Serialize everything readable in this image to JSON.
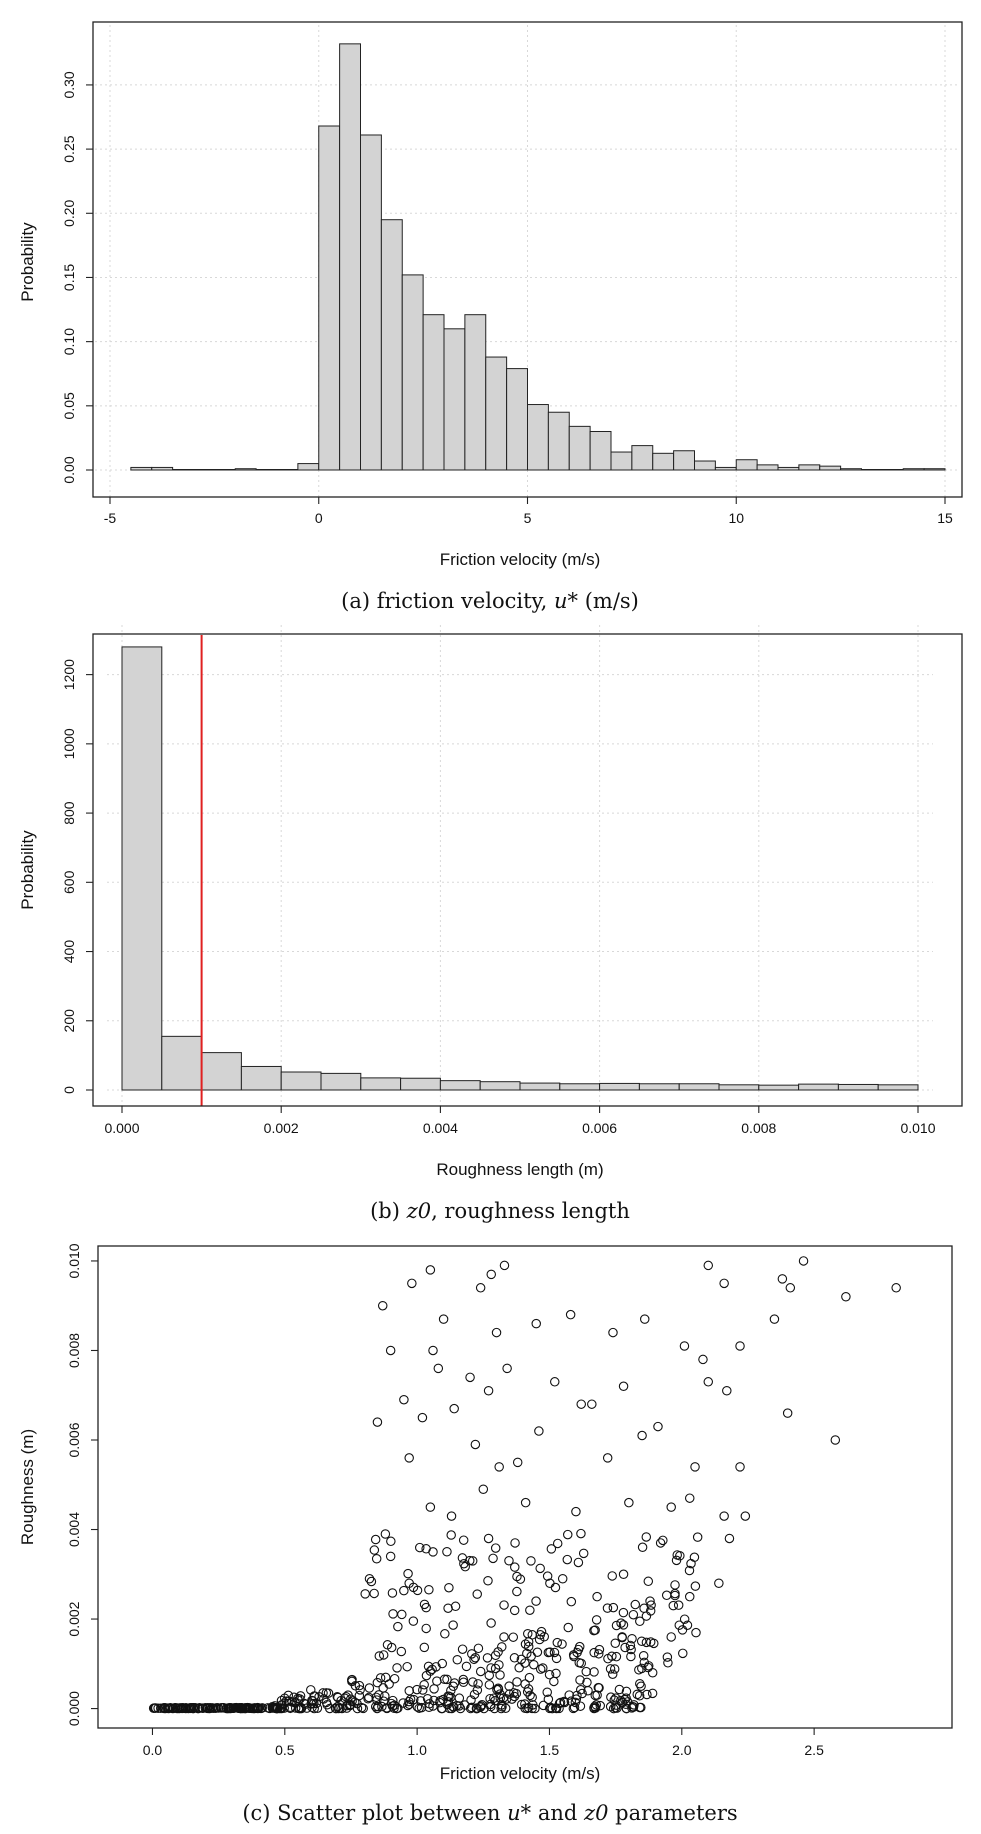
{
  "chart_data": [
    {
      "type": "bar",
      "title": "",
      "caption": {
        "prefix": "(a) friction velocity,",
        "symbol": "u*",
        "suffix": "(m/s)"
      },
      "xlabel": "Friction velocity (m/s)",
      "ylabel": "Probability",
      "xlim": [
        -5,
        15
      ],
      "ylim": [
        0,
        0.335
      ],
      "xticks": [
        "-5",
        "0",
        "5",
        "10",
        "15"
      ],
      "yticks": [
        "0.00",
        "0.05",
        "0.10",
        "0.15",
        "0.20",
        "0.25",
        "0.30"
      ],
      "grid": true,
      "bin_width": 0.5,
      "bin_start": -4.5,
      "values": [
        0.002,
        0.002,
        0,
        0,
        0,
        0.001,
        0,
        0,
        0.005,
        0.268,
        0.332,
        0.261,
        0.195,
        0.152,
        0.121,
        0.11,
        0.121,
        0.088,
        0.079,
        0.051,
        0.045,
        0.034,
        0.03,
        0.014,
        0.019,
        0.013,
        0.015,
        0.007,
        0.002,
        0.008,
        0.004,
        0.002,
        0.004,
        0.003,
        0.001,
        0,
        0,
        0.001,
        0.001
      ]
    },
    {
      "type": "bar",
      "title": "",
      "caption": {
        "prefix": "(b)",
        "symbol": "z0",
        "suffix": ", roughness length"
      },
      "xlabel": "Roughness length (m)",
      "ylabel": "Probability",
      "xlim": [
        0,
        0.01
      ],
      "ylim": [
        0,
        1300
      ],
      "xticks": [
        "0.000",
        "0.002",
        "0.004",
        "0.006",
        "0.008",
        "0.010"
      ],
      "yticks": [
        "0",
        "200",
        "400",
        "600",
        "800",
        "1000",
        "1200"
      ],
      "grid": true,
      "bin_width": 0.0005,
      "bin_start": 0,
      "values": [
        1280,
        155,
        108,
        68,
        52,
        48,
        35,
        34,
        27,
        24,
        20,
        18,
        19,
        18,
        18,
        15,
        14,
        17,
        16,
        15
      ],
      "reference_line": {
        "x": 0.001,
        "color": "#e02020"
      }
    },
    {
      "type": "scatter",
      "title": "",
      "caption": {
        "prefix": "(c) Scatter plot between",
        "symbol1": "u*",
        "middle": "and",
        "symbol2": "z0",
        "suffix": "parameters"
      },
      "xlabel": "Friction velocity (m/s)",
      "ylabel": "Roughness (m)",
      "xlim": [
        -0.1,
        2.9
      ],
      "ylim": [
        -0.0003,
        0.0102
      ],
      "xticks": [
        "0.0",
        "0.5",
        "1.0",
        "1.5",
        "2.0",
        "2.5"
      ],
      "yticks": [
        "0.000",
        "0.002",
        "0.004",
        "0.006",
        "0.008",
        "0.010"
      ],
      "grid": false,
      "sample_points": [
        [
          0.87,
          0.009
        ],
        [
          0.98,
          0.0095
        ],
        [
          1.05,
          0.0098
        ],
        [
          1.28,
          0.0097
        ],
        [
          1.33,
          0.0099
        ],
        [
          1.24,
          0.0094
        ],
        [
          1.1,
          0.0087
        ],
        [
          0.9,
          0.008
        ],
        [
          1.06,
          0.008
        ],
        [
          1.45,
          0.0086
        ],
        [
          1.58,
          0.0088
        ],
        [
          1.74,
          0.0084
        ],
        [
          1.86,
          0.0087
        ],
        [
          2.1,
          0.0099
        ],
        [
          2.16,
          0.0095
        ],
        [
          2.46,
          0.01
        ],
        [
          2.38,
          0.0096
        ],
        [
          2.41,
          0.0094
        ],
        [
          2.62,
          0.0092
        ],
        [
          2.81,
          0.0094
        ],
        [
          2.35,
          0.0087
        ],
        [
          2.01,
          0.0081
        ],
        [
          2.22,
          0.0081
        ],
        [
          1.3,
          0.0084
        ],
        [
          0.85,
          0.0064
        ],
        [
          0.95,
          0.0069
        ],
        [
          1.08,
          0.0076
        ],
        [
          1.14,
          0.0067
        ],
        [
          1.2,
          0.0074
        ],
        [
          1.27,
          0.0071
        ],
        [
          1.34,
          0.0076
        ],
        [
          1.52,
          0.0073
        ],
        [
          1.62,
          0.0068
        ],
        [
          1.66,
          0.0068
        ],
        [
          1.78,
          0.0072
        ],
        [
          1.91,
          0.0063
        ],
        [
          2.08,
          0.0078
        ],
        [
          2.1,
          0.0073
        ],
        [
          2.17,
          0.0071
        ],
        [
          2.4,
          0.0066
        ],
        [
          2.58,
          0.006
        ],
        [
          0.97,
          0.0056
        ],
        [
          1.02,
          0.0065
        ],
        [
          1.22,
          0.0059
        ],
        [
          1.38,
          0.0055
        ],
        [
          1.46,
          0.0062
        ],
        [
          1.72,
          0.0056
        ],
        [
          1.85,
          0.0061
        ],
        [
          2.05,
          0.0054
        ],
        [
          2.22,
          0.0054
        ],
        [
          0.88,
          0.0039
        ],
        [
          1.05,
          0.0045
        ],
        [
          1.13,
          0.0043
        ],
        [
          1.25,
          0.0049
        ],
        [
          1.31,
          0.0054
        ],
        [
          1.41,
          0.0046
        ],
        [
          1.6,
          0.0044
        ],
        [
          1.8,
          0.0046
        ],
        [
          1.96,
          0.0045
        ],
        [
          2.03,
          0.0047
        ],
        [
          2.16,
          0.0043
        ],
        [
          2.18,
          0.0038
        ],
        [
          2.24,
          0.0043
        ],
        [
          0.82,
          0.0029
        ],
        [
          0.9,
          0.0034
        ],
        [
          0.97,
          0.0028
        ],
        [
          1.06,
          0.0035
        ],
        [
          1.12,
          0.0027
        ],
        [
          1.21,
          0.0033
        ],
        [
          1.27,
          0.0038
        ],
        [
          1.37,
          0.0037
        ],
        [
          1.43,
          0.0033
        ],
        [
          1.55,
          0.0029
        ],
        [
          1.68,
          0.0025
        ],
        [
          1.78,
          0.003
        ],
        [
          1.88,
          0.0024
        ],
        [
          1.92,
          0.0037
        ],
        [
          2.03,
          0.0025
        ],
        [
          2.14,
          0.0028
        ],
        [
          1.68,
          0.0003
        ],
        [
          1.89,
          0.0008
        ],
        [
          1.96,
          0.0016
        ]
      ]
    }
  ]
}
